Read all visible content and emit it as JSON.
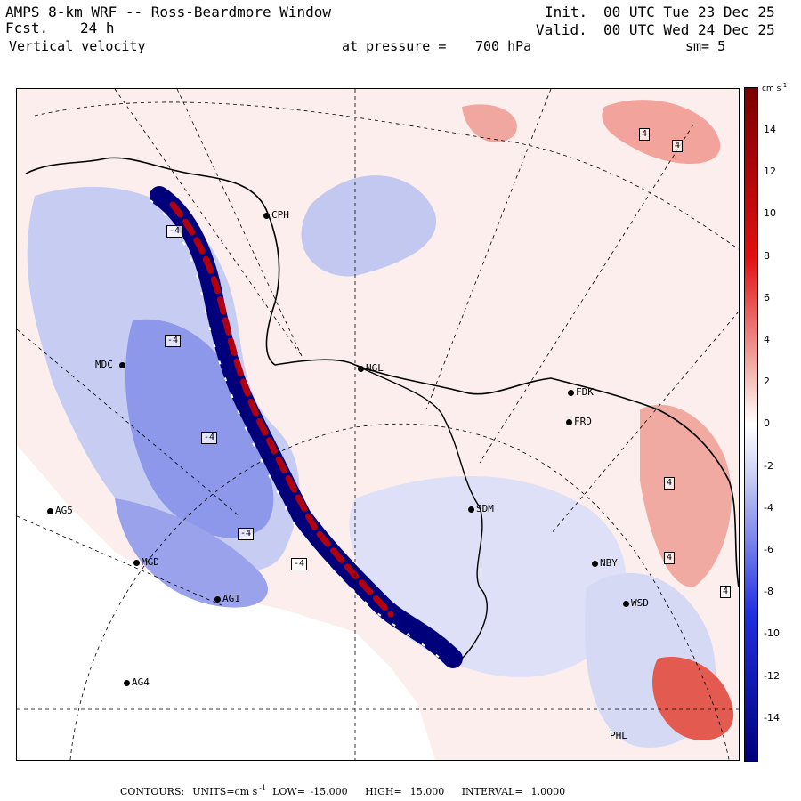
{
  "header": {
    "title": "AMPS 8-km WRF -- Ross-Beardmore Window",
    "forecast_label": "Fcst.",
    "forecast_hours": "24 h",
    "variable": "Vertical velocity",
    "init_label": "Init.",
    "init_time": "00 UTC Tue 23 Dec 25",
    "valid_label": "Valid.",
    "valid_time": "00 UTC Wed 24 Dec 25",
    "pressure_label": "at pressure =",
    "pressure_value": "700 hPa",
    "smoothing": "sm= 5"
  },
  "colorbar": {
    "units": "cm s",
    "units_exp": "-1",
    "ticks": [
      "14",
      "12",
      "10",
      "8",
      "6",
      "4",
      "2",
      "0",
      "-2",
      "-4",
      "-6",
      "-8",
      "-10",
      "-12",
      "-14"
    ],
    "colors": {
      "strong_up": "#7a0000",
      "mid_up": "#e01010",
      "light_up": "#f4b3ad",
      "near_zero": "#ffffff",
      "light_down": "#c8ccf4",
      "mid_down": "#2030e0",
      "strong_down": "#00007a"
    }
  },
  "stations": [
    {
      "id": "CPH",
      "label": "CPH"
    },
    {
      "id": "MDC",
      "label": "MDC"
    },
    {
      "id": "NGL",
      "label": "NGL"
    },
    {
      "id": "FDK",
      "label": "FDK"
    },
    {
      "id": "FRD",
      "label": "FRD"
    },
    {
      "id": "AG5",
      "label": "AG5"
    },
    {
      "id": "MGD",
      "label": "MGD"
    },
    {
      "id": "AG1",
      "label": "AG1"
    },
    {
      "id": "SDM",
      "label": "SDM"
    },
    {
      "id": "NBY",
      "label": "NBY"
    },
    {
      "id": "WSD",
      "label": "WSD"
    },
    {
      "id": "AG4",
      "label": "AG4"
    },
    {
      "id": "PHL",
      "label": "PHL"
    }
  ],
  "contour_labels": [
    "4",
    "4",
    "-4",
    "-4",
    "-4",
    "-4",
    "4",
    "4",
    "4",
    "-4"
  ],
  "footer": {
    "contours_label": "CONTOURS:",
    "units_label": "UNITS=cm s",
    "units_exp": "-1",
    "low_label": "LOW=",
    "low_value": "-15.000",
    "high_label": "HIGH=",
    "high_value": "15.000",
    "interval_label": "INTERVAL=",
    "interval_value": "1.0000"
  }
}
